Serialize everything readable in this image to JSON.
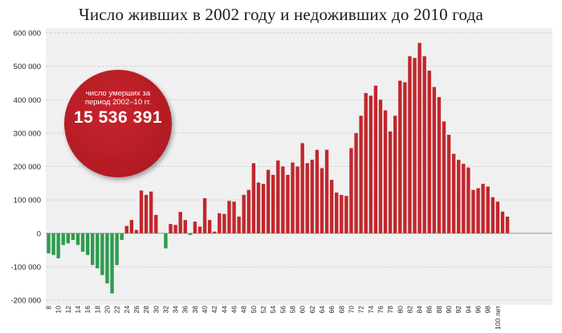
{
  "chart_data": {
    "type": "bar",
    "title": "Число живших в 2002 году и недоживших до 2010 года",
    "x_tick_labels": [
      "8",
      "10",
      "12",
      "14",
      "16",
      "18",
      "20",
      "22",
      "24",
      "26",
      "28",
      "30",
      "32",
      "34",
      "36",
      "38",
      "40",
      "42",
      "44",
      "46",
      "48",
      "50",
      "52",
      "54",
      "56",
      "58",
      "60",
      "62",
      "64",
      "66",
      "68",
      "70",
      "72",
      "74",
      "76",
      "78",
      "80",
      "82",
      "84",
      "86",
      "88",
      "90",
      "92",
      "94",
      "96",
      "98",
      "100 лет"
    ],
    "y_ticks": [
      600000,
      500000,
      400000,
      300000,
      200000,
      100000,
      0,
      -100000,
      -200000
    ],
    "y_tick_labels": [
      "600 000",
      "500 000",
      "400 000",
      "300 000",
      "200 000",
      "100 000",
      "0",
      "-100 000",
      "-200 000"
    ],
    "ylim": [
      -200000,
      600000
    ],
    "grid": true,
    "positive_color": "#c1272d",
    "negative_color": "#2e9c4f",
    "values": [
      -60000,
      -65000,
      -75000,
      -35000,
      -30000,
      -20000,
      -35000,
      -55000,
      -65000,
      -95000,
      -105000,
      -125000,
      -150000,
      -180000,
      -95000,
      -20000,
      22000,
      40000,
      10000,
      128000,
      115000,
      125000,
      55000,
      0,
      -45000,
      28000,
      25000,
      64000,
      40000,
      -5000,
      35000,
      20000,
      105000,
      40000,
      5000,
      60000,
      58000,
      97000,
      95000,
      50000,
      115000,
      130000,
      210000,
      152000,
      148000,
      190000,
      175000,
      218000,
      200000,
      175000,
      212000,
      200000,
      270000,
      210000,
      220000,
      250000,
      195000,
      250000,
      160000,
      122000,
      115000,
      112000,
      255000,
      300000,
      352000,
      420000,
      412000,
      442000,
      400000,
      368000,
      305000,
      352000,
      457000,
      452000,
      530000,
      525000,
      570000,
      530000,
      487000,
      438000,
      408000,
      335000,
      295000,
      238000,
      220000,
      208000,
      197000,
      130000,
      135000,
      148000,
      140000,
      108000,
      95000,
      65000,
      50000
    ]
  },
  "badge": {
    "label": "число умерших за период 2002–10 гг.",
    "value": "15 536 391"
  }
}
